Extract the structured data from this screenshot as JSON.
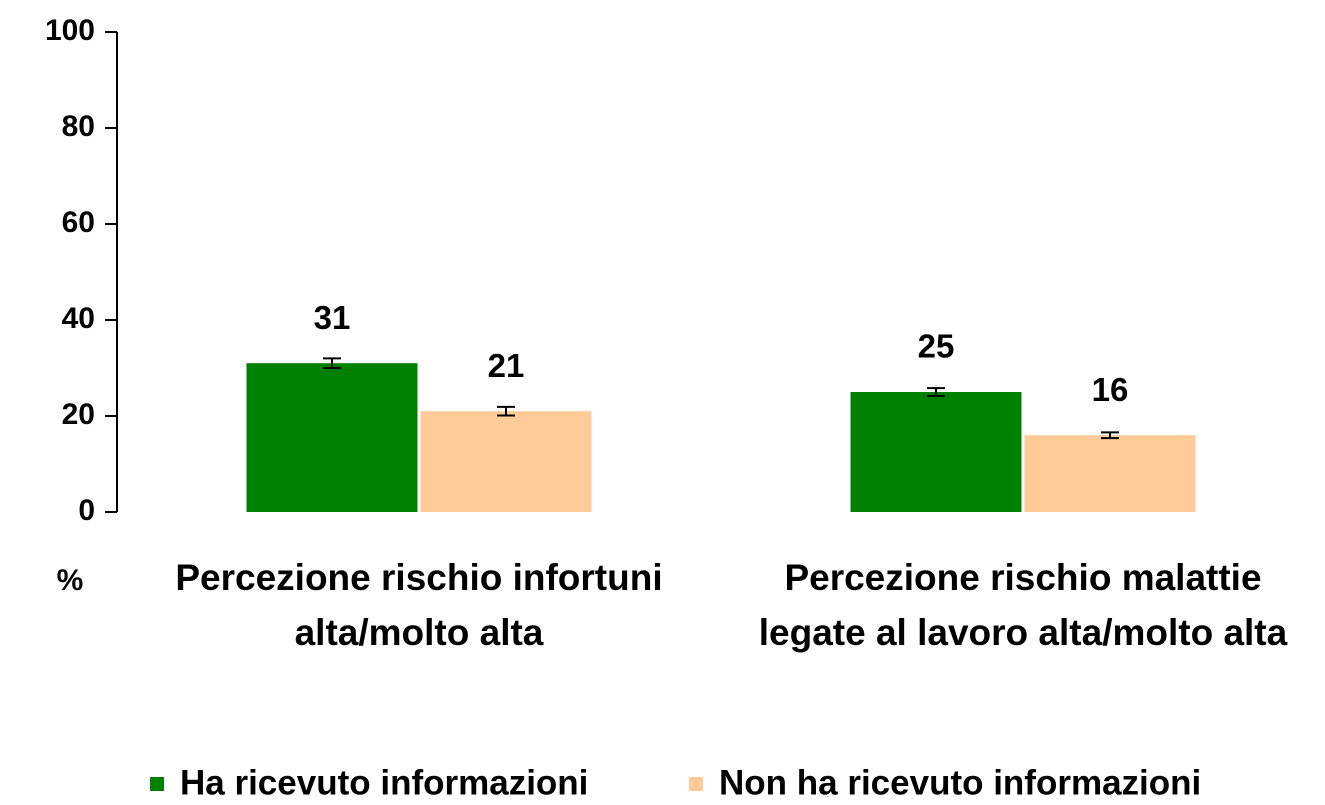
{
  "chart_data": {
    "type": "bar",
    "categories": [
      [
        "Percezione rischio infortuni",
        "alta/molto alta"
      ],
      [
        "Percezione rischio malattie",
        "legate al lavoro alta/molto alta"
      ]
    ],
    "series": [
      {
        "name": "Ha ricevuto informazioni",
        "color": "#008000",
        "values": [
          31,
          25
        ],
        "errors": [
          1,
          0.8
        ]
      },
      {
        "name": "Non ha ricevuto informazioni",
        "color": "#FFCC99",
        "values": [
          21,
          16
        ],
        "errors": [
          0.9,
          0.6
        ]
      }
    ],
    "ylabel": "%",
    "ylim": [
      0,
      100
    ],
    "yticks": [
      0,
      20,
      40,
      60,
      80,
      100
    ],
    "legend": "bottom"
  }
}
